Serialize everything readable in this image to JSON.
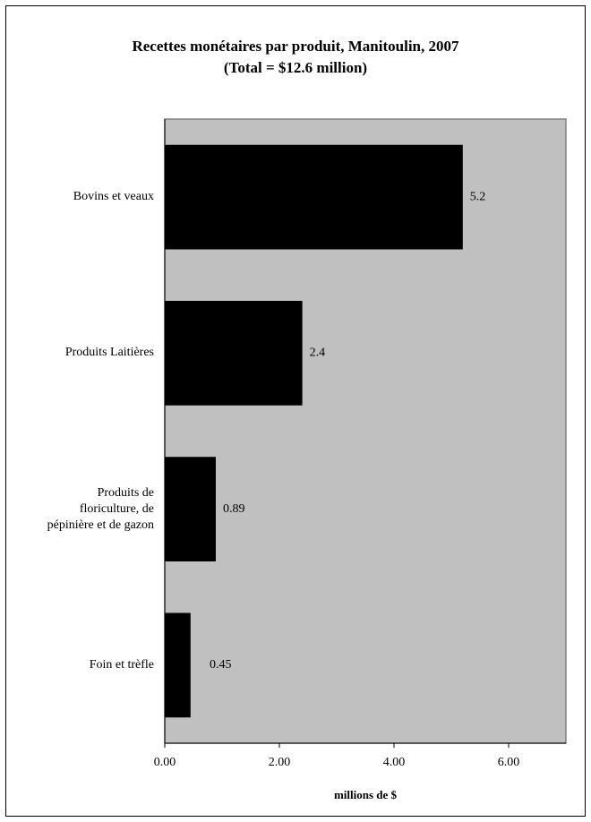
{
  "chart_data": {
    "type": "bar",
    "orientation": "horizontal",
    "title": "Recettes monétaires par produit, Manitoulin, 2007",
    "subtitle": "(Total = $12.6 million)",
    "x_label": "millions de $",
    "categories": [
      "Bovins et veaux",
      "Produits Laitières",
      "Produits de\nfloriculture, de\npépinière et de gazon",
      "Foin et trèfle"
    ],
    "values": [
      5.2,
      2.4,
      0.89,
      0.45
    ],
    "color": "#000000",
    "plot_background": "#c0c0c0",
    "xlim": [
      0,
      7
    ],
    "xticks": [
      {
        "value": 0,
        "label": "0.00"
      },
      {
        "value": 2,
        "label": "2.00"
      },
      {
        "value": 4,
        "label": "4.00"
      },
      {
        "value": 6,
        "label": "6.00"
      }
    ],
    "grid": false
  }
}
